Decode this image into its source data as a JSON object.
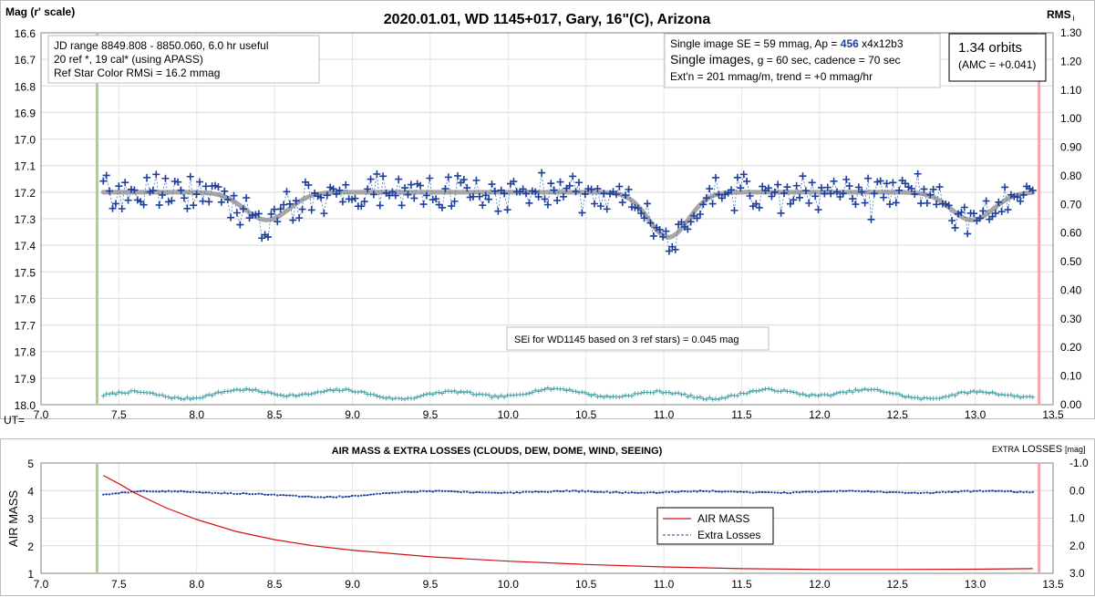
{
  "chart_data": [
    {
      "type": "scatter",
      "title": "2020.01.01, WD 1145+017, Gary, 16\"(C), Arizona",
      "y_label": "Mag (r' scale)",
      "y2_label": "RMS",
      "y2_label_sub": "i",
      "x_prefix": "UT=",
      "xlim": [
        7.0,
        13.5
      ],
      "ylim": [
        16.6,
        18.0
      ],
      "y2lim": [
        0.0,
        1.3
      ],
      "x_ticks": [
        "7.0",
        "7.5",
        "8.0",
        "8.5",
        "9.0",
        "9.5",
        "10.0",
        "10.5",
        "11.0",
        "11.5",
        "12.0",
        "12.5",
        "13.0",
        "13.5"
      ],
      "y_ticks": [
        "16.6",
        "16.7",
        "16.8",
        "16.9",
        "17.0",
        "17.1",
        "17.2",
        "17.3",
        "17.4",
        "17.5",
        "17.6",
        "17.7",
        "17.8",
        "17.9",
        "18.0"
      ],
      "y2_ticks": [
        "1.30",
        "1.20",
        "1.10",
        "1.00",
        "0.90",
        "0.80",
        "0.70",
        "0.60",
        "0.50",
        "0.40",
        "0.30",
        "0.20",
        "0.10",
        "0.00"
      ],
      "grid": true,
      "start_marker_x": 7.36,
      "end_marker_x": 13.41,
      "info_box_left": [
        "JD range 8849.808 - 8850.060, 6.0 hr useful",
        "20 ref *, 19 cal* (using APASS)",
        "Ref Star Color RMSi = 16.2 mmag"
      ],
      "info_box_right": {
        "line1_prefix": "Single image SE = 59 mmag, Ap = ",
        "line1_ap": "456",
        "line1_suffix": " x4x12b3",
        "line2_big": "Single images, ",
        "line2_rest": "g = 60 sec, cadence = 70 sec",
        "line3": "Ext'n = 201 mmag/m, trend = +0 mmag/hr"
      },
      "orbits_box": {
        "line1": "1.34 orbits",
        "line2": "(AMC = +0.041)"
      },
      "annotation": "SEi for WD1145 based on 3 ref stars) = 0.045 mag",
      "model": {
        "baseline": 17.2,
        "dips": [
          {
            "center": 8.45,
            "depth": 0.105,
            "width": 0.2
          },
          {
            "center": 11.03,
            "depth": 0.17,
            "width": 0.18
          },
          {
            "center": 12.98,
            "depth": 0.105,
            "width": 0.19
          }
        ]
      },
      "series": [
        {
          "name": "",
          "color": "#1f3f9e",
          "x_start": 7.4,
          "x_end": 13.37,
          "count": 300,
          "y_scatter": 0.06
        },
        {
          "name": "",
          "color": "#4aa3a8",
          "axis": "y2",
          "x_start": 7.4,
          "x_end": 13.37,
          "count": 300,
          "y_mean": 0.05
        }
      ]
    },
    {
      "type": "line",
      "title": "AIR MASS & EXTRA LOSSES (CLOUDS, DEW, DOME, WIND, SEEING)",
      "y_label": "AIR MASS",
      "y2_label_small": "EXTRA",
      "y2_label_big": "LOSSES",
      "y2_label_unit": "[mag]",
      "xlim": [
        7.0,
        13.5
      ],
      "ylim": [
        1,
        5
      ],
      "y2lim": [
        -1.0,
        3.0
      ],
      "x_ticks": [
        "7.0",
        "7.5",
        "8.0",
        "8.5",
        "9.0",
        "9.5",
        "10.0",
        "10.5",
        "11.0",
        "11.5",
        "12.0",
        "12.5",
        "13.0",
        "13.5"
      ],
      "y_ticks": [
        "5",
        "4",
        "3",
        "2",
        "1"
      ],
      "y2_ticks": [
        "-1.0",
        "0.0",
        "1.0",
        "2.0",
        "3.0"
      ],
      "grid": true,
      "start_marker_x": 7.36,
      "end_marker_x": 13.41,
      "air_mass": {
        "x": [
          7.4,
          7.5,
          7.6,
          7.8,
          8.0,
          8.25,
          8.5,
          8.75,
          9.0,
          9.5,
          10.0,
          10.5,
          11.0,
          11.5,
          12.0,
          12.5,
          13.0,
          13.37
        ],
        "y": [
          4.55,
          4.25,
          3.92,
          3.38,
          2.95,
          2.52,
          2.22,
          2.0,
          1.84,
          1.6,
          1.44,
          1.32,
          1.23,
          1.17,
          1.14,
          1.14,
          1.15,
          1.17
        ]
      },
      "extra_losses": {
        "x_start": 7.4,
        "x_end": 13.37,
        "count": 300,
        "mean": 0.05,
        "sags": [
          {
            "center": 8.75,
            "depth": 0.2,
            "width": 0.35
          }
        ]
      },
      "legend": {
        "position": "inside-right",
        "items": [
          "AIR MASS",
          "Extra Losses"
        ]
      },
      "colors": {
        "air_mass": "#d01010",
        "extra_losses": "#1f3f9e"
      }
    }
  ]
}
